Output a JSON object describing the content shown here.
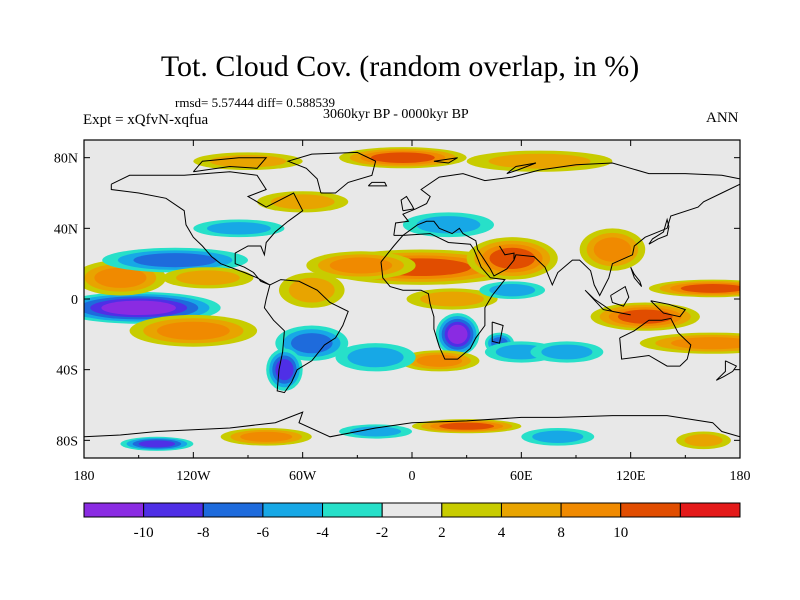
{
  "title": "Tot. Cloud Cov. (random overlap, in %)",
  "stats_line": "rmsd= 5.57444 diff= 0.588539",
  "period_line": "3060kyr BP - 0000kyr BP",
  "experiment_line": "Expt = xQfvN-xqfua",
  "season": "ANN",
  "x_ticks": [
    "180",
    "120W",
    "60W",
    "0",
    "60E",
    "120E",
    "180"
  ],
  "y_ticks": [
    "80N",
    "40N",
    "0",
    "40S",
    "80S"
  ],
  "colorbar": {
    "labels": [
      "-10",
      "-8",
      "-6",
      "-4",
      "-2",
      "2",
      "4",
      "8",
      "10"
    ],
    "colors": [
      "#8a2be2",
      "#4f2fe6",
      "#1e6bdc",
      "#17a8e6",
      "#27e0c9",
      "#e8e8e8",
      "#c8cc00",
      "#e8a400",
      "#f08a00",
      "#e14d00",
      "#e41a1a"
    ]
  },
  "chart_data": {
    "type": "heatmap",
    "x_range": [
      -180,
      180
    ],
    "y_range": [
      -90,
      90
    ],
    "x_ticks_values": [
      -180,
      -120,
      -60,
      0,
      60,
      120,
      180
    ],
    "y_ticks_values": [
      80,
      40,
      0,
      -40,
      -80
    ],
    "levels": [
      -10,
      -8,
      -6,
      -4,
      -2,
      2,
      4,
      8,
      10
    ],
    "blobs": [
      {
        "lon": 5,
        "lat": 18,
        "rx": 55,
        "ry": 10,
        "v": 11
      },
      {
        "lon": 55,
        "lat": 23,
        "rx": 25,
        "ry": 12,
        "v": 10
      },
      {
        "lon": -28,
        "lat": 19,
        "rx": 30,
        "ry": 8,
        "v": 8
      },
      {
        "lon": 110,
        "lat": 28,
        "rx": 18,
        "ry": 12,
        "v": 9
      },
      {
        "lon": 22,
        "lat": 0,
        "rx": 25,
        "ry": 6,
        "v": 5
      },
      {
        "lon": 165,
        "lat": 6,
        "rx": 35,
        "ry": 5,
        "v": 11
      },
      {
        "lon": 128,
        "lat": -10,
        "rx": 30,
        "ry": 8,
        "v": 10
      },
      {
        "lon": 165,
        "lat": -25,
        "rx": 40,
        "ry": 6,
        "v": 9
      },
      {
        "lon": -150,
        "lat": -5,
        "rx": 45,
        "ry": 9,
        "v": -11
      },
      {
        "lon": -120,
        "lat": -18,
        "rx": 35,
        "ry": 9,
        "v": 9
      },
      {
        "lon": -160,
        "lat": 12,
        "rx": 25,
        "ry": 10,
        "v": 8
      },
      {
        "lon": -130,
        "lat": 22,
        "rx": 40,
        "ry": 7,
        "v": -6
      },
      {
        "lon": -112,
        "lat": 12,
        "rx": 25,
        "ry": 6,
        "v": 5
      },
      {
        "lon": 25,
        "lat": -20,
        "rx": 12,
        "ry": 12,
        "v": -11
      },
      {
        "lon": 48,
        "lat": -25,
        "rx": 8,
        "ry": 6,
        "v": -6
      },
      {
        "lon": 60,
        "lat": -30,
        "rx": 20,
        "ry": 6,
        "v": -4
      },
      {
        "lon": 15,
        "lat": -35,
        "rx": 22,
        "ry": 6,
        "v": 9
      },
      {
        "lon": -55,
        "lat": -25,
        "rx": 20,
        "ry": 10,
        "v": -6
      },
      {
        "lon": -70,
        "lat": -40,
        "rx": 10,
        "ry": 12,
        "v": -8
      },
      {
        "lon": -55,
        "lat": 5,
        "rx": 18,
        "ry": 10,
        "v": 5
      },
      {
        "lon": -20,
        "lat": -33,
        "rx": 22,
        "ry": 8,
        "v": -4
      },
      {
        "lon": -60,
        "lat": 55,
        "rx": 25,
        "ry": 6,
        "v": 6
      },
      {
        "lon": -95,
        "lat": 40,
        "rx": 25,
        "ry": 5,
        "v": -5
      },
      {
        "lon": 20,
        "lat": 42,
        "rx": 25,
        "ry": 7,
        "v": -5
      },
      {
        "lon": 55,
        "lat": 5,
        "rx": 18,
        "ry": 5,
        "v": -5
      },
      {
        "lon": 85,
        "lat": -30,
        "rx": 20,
        "ry": 6,
        "v": -5
      },
      {
        "lon": -5,
        "lat": 80,
        "rx": 35,
        "ry": 6,
        "v": 11
      },
      {
        "lon": 70,
        "lat": 78,
        "rx": 40,
        "ry": 6,
        "v": 6
      },
      {
        "lon": -90,
        "lat": 78,
        "rx": 30,
        "ry": 5,
        "v": 5
      },
      {
        "lon": 30,
        "lat": -72,
        "rx": 30,
        "ry": 4,
        "v": 11
      },
      {
        "lon": -80,
        "lat": -78,
        "rx": 25,
        "ry": 5,
        "v": 9
      },
      {
        "lon": -140,
        "lat": -82,
        "rx": 20,
        "ry": 4,
        "v": -9
      },
      {
        "lon": 80,
        "lat": -78,
        "rx": 20,
        "ry": 5,
        "v": -5
      },
      {
        "lon": -20,
        "lat": -75,
        "rx": 20,
        "ry": 4,
        "v": -4
      },
      {
        "lon": 160,
        "lat": -80,
        "rx": 15,
        "ry": 5,
        "v": 5
      }
    ]
  }
}
